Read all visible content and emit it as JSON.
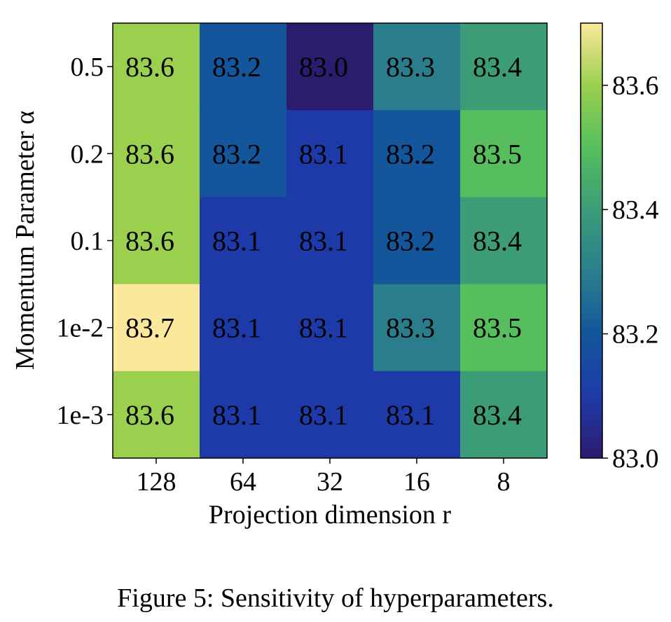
{
  "caption": "Figure 5: Sensitivity of hyperparameters.",
  "chart_data": {
    "type": "heatmap",
    "xlabel": "Projection dimension r",
    "ylabel": "Momentum Parameter α",
    "x_categories": [
      "128",
      "64",
      "32",
      "16",
      "8"
    ],
    "y_categories": [
      "0.5",
      "0.2",
      "0.1",
      "1e-2",
      "1e-3"
    ],
    "values": [
      [
        83.6,
        83.2,
        83.0,
        83.3,
        83.4
      ],
      [
        83.6,
        83.2,
        83.1,
        83.2,
        83.5
      ],
      [
        83.6,
        83.1,
        83.1,
        83.2,
        83.4
      ],
      [
        83.7,
        83.1,
        83.1,
        83.3,
        83.5
      ],
      [
        83.6,
        83.1,
        83.1,
        83.1,
        83.4
      ]
    ],
    "cell_labels": [
      [
        "83.6",
        "83.2",
        "83.0",
        "83.3",
        "83.4"
      ],
      [
        "83.6",
        "83.2",
        "83.1",
        "83.2",
        "83.5"
      ],
      [
        "83.6",
        "83.1",
        "83.1",
        "83.2",
        "83.4"
      ],
      [
        "83.7",
        "83.1",
        "83.1",
        "83.3",
        "83.5"
      ],
      [
        "83.6",
        "83.1",
        "83.1",
        "83.1",
        "83.4"
      ]
    ],
    "colorbar": {
      "range": [
        83.0,
        83.7
      ],
      "ticks": [
        83.0,
        83.2,
        83.4,
        83.6
      ],
      "tick_labels": [
        "83.0",
        "83.2",
        "83.4",
        "83.6"
      ],
      "colormap": [
        "#2b1c6e",
        "#1e3aa8",
        "#13569c",
        "#2a7e8c",
        "#3c9c78",
        "#56be5d",
        "#9bcf4e",
        "#fbe89a"
      ]
    }
  }
}
